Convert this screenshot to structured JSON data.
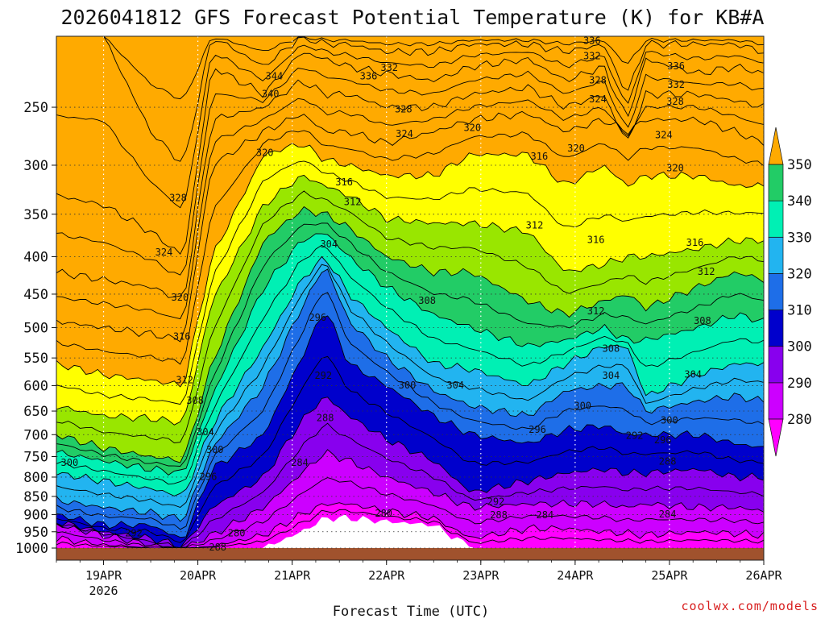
{
  "chart_data": {
    "type": "heatmap",
    "title": "2026041812 GFS Forecast Potential Temperature (K) for KB#A",
    "xlabel": "Forecast Time (UTC)",
    "ylabel": "",
    "credit": "coolwx.com/models",
    "x_ticks": [
      {
        "label": "19APR",
        "sub": "2026",
        "day": 19
      },
      {
        "label": "20APR",
        "sub": "",
        "day": 20
      },
      {
        "label": "21APR",
        "sub": "",
        "day": 21
      },
      {
        "label": "22APR",
        "sub": "",
        "day": 22
      },
      {
        "label": "23APR",
        "sub": "",
        "day": 23
      },
      {
        "label": "24APR",
        "sub": "",
        "day": 24
      },
      {
        "label": "25APR",
        "sub": "",
        "day": 25
      },
      {
        "label": "26APR",
        "sub": "",
        "day": 26
      }
    ],
    "x_range_days": [
      18.5,
      26.0
    ],
    "y_ticks": [
      250,
      300,
      350,
      400,
      450,
      500,
      550,
      600,
      650,
      700,
      750,
      800,
      850,
      900,
      950,
      1000
    ],
    "y_range_hpa": [
      200,
      1000
    ],
    "y_scale": "log-pressure",
    "grid": true,
    "legend": {
      "placement": "right",
      "levels": [
        280,
        290,
        300,
        310,
        320,
        330,
        340,
        350
      ],
      "colors": [
        "#ff00ff",
        "#cc00ff",
        "#8800ee",
        "#0000cc",
        "#1e6ee8",
        "#22b4f0",
        "#00f0b4",
        "#22cc66",
        "#99e600",
        "#ffff00",
        "#ffaa00"
      ]
    },
    "contour_interval_K": 4,
    "contour_labels": [
      {
        "value": 336,
        "day": 24.18,
        "hpa": 203
      },
      {
        "value": 332,
        "day": 24.18,
        "hpa": 213
      },
      {
        "value": 336,
        "day": 25.07,
        "hpa": 220
      },
      {
        "value": 332,
        "day": 25.07,
        "hpa": 233
      },
      {
        "value": 344,
        "day": 20.81,
        "hpa": 227
      },
      {
        "value": 340,
        "day": 20.77,
        "hpa": 240
      },
      {
        "value": 336,
        "day": 21.81,
        "hpa": 227
      },
      {
        "value": 332,
        "day": 22.03,
        "hpa": 221
      },
      {
        "value": 328,
        "day": 22.18,
        "hpa": 252
      },
      {
        "value": 328,
        "day": 24.24,
        "hpa": 230
      },
      {
        "value": 324,
        "day": 24.24,
        "hpa": 244
      },
      {
        "value": 328,
        "day": 25.06,
        "hpa": 246
      },
      {
        "value": 324,
        "day": 22.19,
        "hpa": 272
      },
      {
        "value": 320,
        "day": 22.91,
        "hpa": 267
      },
      {
        "value": 324,
        "day": 24.94,
        "hpa": 273
      },
      {
        "value": 320,
        "day": 24.01,
        "hpa": 285
      },
      {
        "value": 320,
        "day": 20.71,
        "hpa": 289
      },
      {
        "value": 316,
        "day": 23.62,
        "hpa": 292
      },
      {
        "value": 320,
        "day": 25.06,
        "hpa": 303
      },
      {
        "value": 316,
        "day": 21.55,
        "hpa": 317
      },
      {
        "value": 312,
        "day": 21.64,
        "hpa": 337
      },
      {
        "value": 328,
        "day": 19.79,
        "hpa": 333
      },
      {
        "value": 312,
        "day": 23.57,
        "hpa": 363
      },
      {
        "value": 316,
        "day": 24.22,
        "hpa": 380
      },
      {
        "value": 316,
        "day": 25.27,
        "hpa": 383
      },
      {
        "value": 304,
        "day": 21.39,
        "hpa": 385
      },
      {
        "value": 324,
        "day": 19.64,
        "hpa": 395
      },
      {
        "value": 312,
        "day": 25.39,
        "hpa": 420
      },
      {
        "value": 320,
        "day": 19.81,
        "hpa": 455
      },
      {
        "value": 308,
        "day": 22.43,
        "hpa": 460
      },
      {
        "value": 296,
        "day": 21.27,
        "hpa": 485
      },
      {
        "value": 312,
        "day": 24.22,
        "hpa": 475
      },
      {
        "value": 308,
        "day": 25.35,
        "hpa": 490
      },
      {
        "value": 316,
        "day": 19.83,
        "hpa": 515
      },
      {
        "value": 308,
        "day": 24.38,
        "hpa": 535
      },
      {
        "value": 292,
        "day": 21.33,
        "hpa": 582
      },
      {
        "value": 304,
        "day": 24.38,
        "hpa": 582
      },
      {
        "value": 304,
        "day": 25.25,
        "hpa": 580
      },
      {
        "value": 312,
        "day": 19.86,
        "hpa": 590
      },
      {
        "value": 300,
        "day": 22.22,
        "hpa": 600
      },
      {
        "value": 304,
        "day": 22.73,
        "hpa": 600
      },
      {
        "value": 308,
        "day": 19.97,
        "hpa": 630
      },
      {
        "value": 300,
        "day": 24.08,
        "hpa": 640
      },
      {
        "value": 296,
        "day": 23.6,
        "hpa": 690
      },
      {
        "value": 300,
        "day": 25.0,
        "hpa": 670
      },
      {
        "value": 288,
        "day": 21.35,
        "hpa": 665
      },
      {
        "value": 304,
        "day": 20.08,
        "hpa": 695
      },
      {
        "value": 292,
        "day": 24.63,
        "hpa": 703
      },
      {
        "value": 296,
        "day": 24.93,
        "hpa": 713
      },
      {
        "value": 300,
        "day": 20.18,
        "hpa": 735
      },
      {
        "value": 300,
        "day": 18.64,
        "hpa": 765
      },
      {
        "value": 284,
        "day": 21.08,
        "hpa": 765
      },
      {
        "value": 288,
        "day": 24.98,
        "hpa": 762
      },
      {
        "value": 296,
        "day": 20.11,
        "hpa": 800
      },
      {
        "value": 292,
        "day": 23.16,
        "hpa": 865
      },
      {
        "value": 280,
        "day": 21.97,
        "hpa": 898
      },
      {
        "value": 288,
        "day": 23.19,
        "hpa": 903
      },
      {
        "value": 284,
        "day": 23.68,
        "hpa": 903
      },
      {
        "value": 284,
        "day": 24.98,
        "hpa": 900
      },
      {
        "value": 292,
        "day": 19.32,
        "hpa": 955
      },
      {
        "value": 280,
        "day": 20.41,
        "hpa": 955
      },
      {
        "value": 288,
        "day": 20.21,
        "hpa": 1015
      }
    ],
    "columns": [
      {
        "day": 18.5,
        "b": [
          1000,
          970,
          930,
          920,
          900,
          860,
          790,
          740,
          700,
          640,
          560,
          490,
          420,
          330,
          200,
          200
        ]
      },
      {
        "day": 19.0,
        "b": [
          1000,
          990,
          960,
          950,
          930,
          880,
          810,
          760,
          730,
          660,
          580,
          500,
          430,
          340,
          200,
          200
        ]
      },
      {
        "day": 19.5,
        "b": [
          1000,
          1000,
          990,
          970,
          930,
          895,
          830,
          780,
          750,
          665,
          590,
          510,
          440,
          370,
          270,
          200
        ]
      },
      {
        "day": 19.85,
        "b": [
          1000,
          1000,
          1000,
          995,
          975,
          915,
          850,
          790,
          760,
          675,
          600,
          520,
          460,
          400,
          300,
          200
        ]
      },
      {
        "day": 20.15,
        "b": [
          1000,
          995,
          960,
          880,
          780,
          730,
          680,
          620,
          560,
          460,
          400,
          300,
          260,
          220,
          200,
          200
        ]
      },
      {
        "day": 20.7,
        "b": [
          1000,
          960,
          880,
          800,
          700,
          600,
          530,
          440,
          380,
          340,
          290,
          270,
          250,
          240,
          220,
          200
        ]
      },
      {
        "day": 21.1,
        "b": [
          950,
          900,
          790,
          670,
          550,
          470,
          430,
          380,
          345,
          310,
          280,
          255,
          230,
          210,
          200,
          200
        ]
      },
      {
        "day": 21.35,
        "b": [
          910,
          870,
          740,
          620,
          470,
          410,
          400,
          370,
          350,
          320,
          295,
          270,
          240,
          215,
          205,
          200
        ]
      },
      {
        "day": 21.6,
        "b": [
          910,
          870,
          760,
          660,
          560,
          490,
          450,
          400,
          365,
          330,
          300,
          270,
          240,
          220,
          205,
          200
        ]
      },
      {
        "day": 22.0,
        "b": [
          920,
          890,
          800,
          710,
          600,
          550,
          500,
          440,
          400,
          355,
          310,
          280,
          250,
          225,
          210,
          200
        ]
      },
      {
        "day": 22.5,
        "b": [
          930,
          910,
          840,
          760,
          660,
          610,
          560,
          480,
          420,
          360,
          310,
          270,
          250,
          230,
          210,
          200
        ]
      },
      {
        "day": 22.9,
        "b": [
          1000,
          970,
          880,
          840,
          700,
          640,
          570,
          500,
          420,
          360,
          290,
          260,
          240,
          220,
          205,
          200
        ]
      },
      {
        "day": 23.5,
        "b": [
          1000,
          940,
          870,
          810,
          720,
          660,
          600,
          530,
          460,
          370,
          290,
          255,
          235,
          215,
          205,
          200
        ]
      },
      {
        "day": 23.9,
        "b": [
          1000,
          940,
          870,
          790,
          690,
          610,
          560,
          520,
          480,
          420,
          320,
          270,
          250,
          230,
          210,
          200
        ]
      },
      {
        "day": 24.3,
        "b": [
          1000,
          950,
          870,
          780,
          680,
          600,
          530,
          500,
          460,
          410,
          300,
          260,
          240,
          220,
          205,
          200
        ]
      },
      {
        "day": 24.55,
        "b": [
          1000,
          955,
          880,
          790,
          700,
          600,
          530,
          520,
          450,
          400,
          320,
          270,
          280,
          260,
          240,
          200
        ]
      },
      {
        "day": 24.75,
        "b": [
          1000,
          960,
          870,
          790,
          700,
          650,
          620,
          520,
          470,
          400,
          310,
          260,
          240,
          215,
          205,
          200
        ]
      },
      {
        "day": 25.3,
        "b": [
          1000,
          950,
          880,
          780,
          700,
          630,
          580,
          500,
          440,
          390,
          310,
          260,
          240,
          225,
          205,
          200
        ]
      },
      {
        "day": 25.7,
        "b": [
          1000,
          955,
          880,
          800,
          720,
          620,
          560,
          480,
          420,
          380,
          320,
          270,
          245,
          220,
          205,
          200
        ]
      },
      {
        "day": 26.0,
        "b": [
          1000,
          960,
          890,
          800,
          730,
          630,
          560,
          490,
          430,
          380,
          320,
          280,
          250,
          225,
          210,
          200
        ]
      }
    ]
  }
}
